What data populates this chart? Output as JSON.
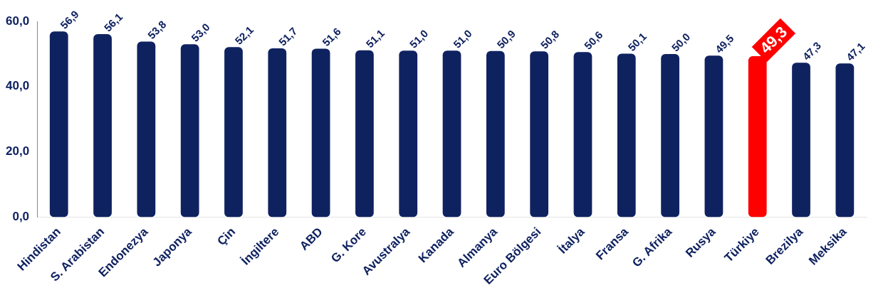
{
  "chart_data": {
    "type": "bar",
    "categories": [
      "Hindistan",
      "S. Arabistan",
      "Endonezya",
      "Japonya",
      "Çin",
      "İngiltere",
      "ABD",
      "G. Kore",
      "Avustralya",
      "Kanada",
      "Almanya",
      "Euro Bölgesi",
      "İtalya",
      "Fransa",
      "G. Afrika",
      "Rusya",
      "Türkiye",
      "Brezilya",
      "Meksika"
    ],
    "values": [
      56.9,
      56.1,
      53.8,
      53.0,
      52.1,
      51.7,
      51.6,
      51.1,
      51.0,
      51.0,
      50.9,
      50.8,
      50.6,
      50.1,
      50.0,
      49.5,
      49.3,
      47.3,
      47.1
    ],
    "colors": [
      "#0f2260",
      "#0f2260",
      "#0f2260",
      "#0f2260",
      "#0f2260",
      "#0f2260",
      "#0f2260",
      "#0f2260",
      "#0f2260",
      "#0f2260",
      "#0f2260",
      "#0f2260",
      "#0f2260",
      "#0f2260",
      "#0f2260",
      "#0f2260",
      "#ff0000",
      "#0f2260",
      "#0f2260"
    ],
    "value_labels": [
      "56,9",
      "56,1",
      "53,8",
      "53,0",
      "52,1",
      "51,7",
      "51,6",
      "51,1",
      "51,0",
      "51,0",
      "50,9",
      "50,8",
      "50,6",
      "50,1",
      "50,0",
      "49,5",
      "49,3",
      "47,3",
      "47,1"
    ],
    "ylim": [
      0,
      60
    ],
    "yticks": [
      {
        "value": 0,
        "label": "0,0"
      },
      {
        "value": 20,
        "label": "20,0"
      },
      {
        "value": 40,
        "label": "40,0"
      },
      {
        "value": 60,
        "label": "60,0"
      }
    ],
    "grid": false,
    "legend": false
  }
}
